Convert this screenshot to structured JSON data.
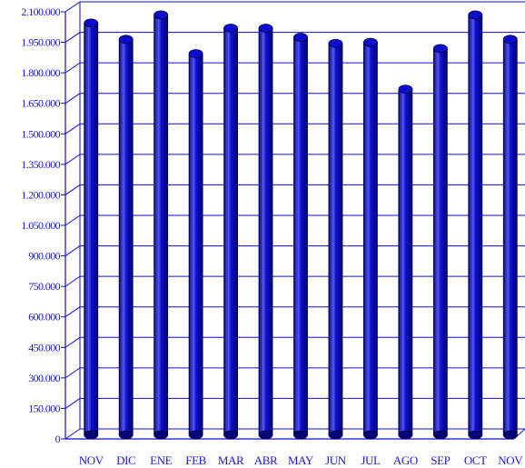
{
  "chart_data": {
    "type": "bar",
    "title": "",
    "xlabel": "",
    "ylabel": "",
    "categories": [
      "NOV",
      "DIC",
      "ENE",
      "FEB",
      "MAR",
      "ABR",
      "MAY",
      "JUN",
      "JUL",
      "AGO",
      "SEP",
      "OCT",
      "NOV"
    ],
    "values": [
      2020000,
      1940000,
      2060000,
      1870000,
      1995000,
      1995000,
      1950000,
      1920000,
      1925000,
      1695000,
      1895000,
      2060000,
      1940000
    ],
    "ylim": [
      0,
      2100000
    ],
    "yticks": [
      0,
      150000,
      300000,
      450000,
      600000,
      750000,
      900000,
      1050000,
      1200000,
      1350000,
      1500000,
      1650000,
      1800000,
      1950000,
      2100000
    ],
    "ytick_labels": [
      "0",
      "150.000",
      "300.000",
      "450.000",
      "600.000",
      "750.000",
      "900.000",
      "1.050.000",
      "1.200.000",
      "1.350.000",
      "1.500.000",
      "1.650.000",
      "1.800.000",
      "1.950.000",
      "2.100.000"
    ],
    "grid": true,
    "legend": "none",
    "colors": {
      "bar": "#0d0dd0",
      "bar_light": "#5a5aff",
      "bar_dark": "#05057a",
      "bar_outline": "#000033",
      "grid": "#1010c8",
      "text": "#1a1ad6"
    }
  }
}
